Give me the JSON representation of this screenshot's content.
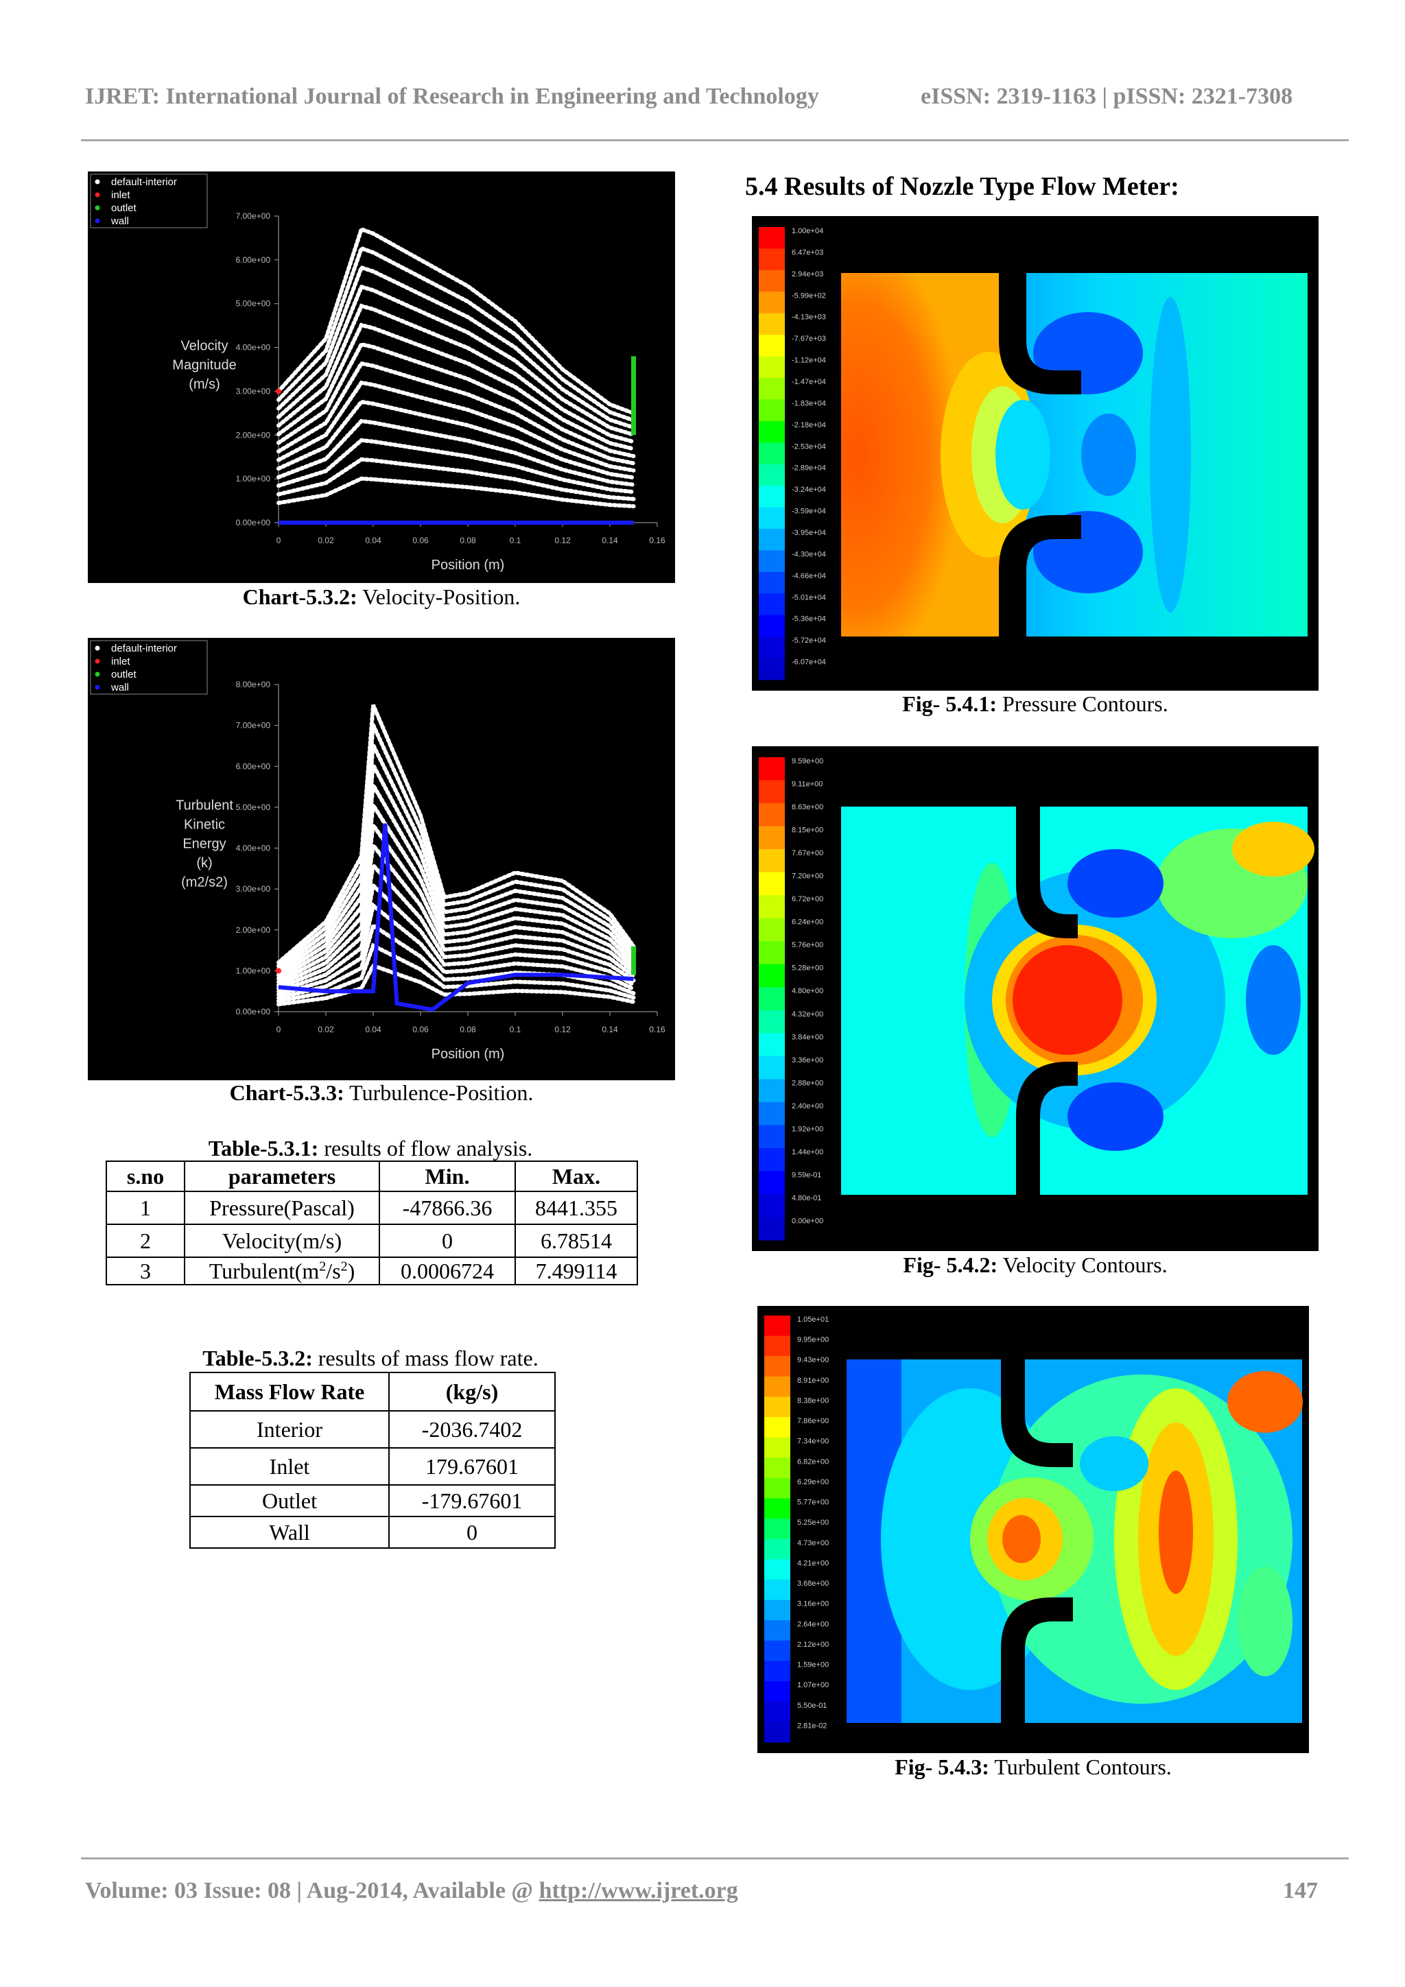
{
  "header": {
    "journal": "IJRET: International Journal of Research in Engineering and Technology",
    "issn": "eISSN: 2319-1163 | pISSN: 2321-7308"
  },
  "chart_532": {
    "caption_label": "Chart-5.3.2:",
    "caption_text": " Velocity-Position.",
    "legend": [
      "default-interior",
      "inlet",
      "outlet",
      "wall"
    ],
    "legend_colors": [
      "#ffffff",
      "#ff2020",
      "#20d020",
      "#1a1aff"
    ],
    "ylabel": [
      "Velocity",
      "Magnitude",
      "(m/s)"
    ],
    "yticks": [
      "7.00e+00",
      "6.00e+00",
      "5.00e+00",
      "4.00e+00",
      "3.00e+00",
      "2.00e+00",
      "1.00e+00",
      "0.00e+00"
    ],
    "xticks": [
      "0",
      "0.02",
      "0.04",
      "0.06",
      "0.08",
      "0.1",
      "0.12",
      "0.14",
      "0.16"
    ],
    "xlabel": "Position (m)"
  },
  "chart_533": {
    "caption_label": "Chart-5.3.3:",
    "caption_text": " Turbulence-Position.",
    "legend": [
      "default-interior",
      "inlet",
      "outlet",
      "wall"
    ],
    "legend_colors": [
      "#ffffff",
      "#ff2020",
      "#20d020",
      "#1a1aff"
    ],
    "ylabel": [
      "Turbulent",
      "Kinetic",
      "Energy",
      "(k)",
      "(m2/s2)"
    ],
    "yticks": [
      "8.00e+00",
      "7.00e+00",
      "6.00e+00",
      "5.00e+00",
      "4.00e+00",
      "3.00e+00",
      "2.00e+00",
      "1.00e+00",
      "0.00e+00"
    ],
    "xticks": [
      "0",
      "0.02",
      "0.04",
      "0.06",
      "0.08",
      "0.1",
      "0.12",
      "0.14",
      "0.16"
    ],
    "xlabel": "Position (m)"
  },
  "chart_data": [
    {
      "type": "scatter",
      "title": "",
      "xlabel": "Position (m)",
      "ylabel": "Velocity Magnitude (m/s)",
      "xlim": [
        0,
        0.16
      ],
      "ylim": [
        0,
        7
      ],
      "series": [
        {
          "name": "default-interior",
          "x": [
            0,
            0.02,
            0.035,
            0.04,
            0.05,
            0.06,
            0.08,
            0.1,
            0.12,
            0.14,
            0.15
          ],
          "values": [
            3.0,
            4.2,
            6.7,
            6.6,
            6.3,
            6.0,
            5.4,
            4.6,
            3.5,
            2.7,
            2.5
          ]
        },
        {
          "name": "inlet",
          "x": [
            0
          ],
          "values": [
            3.0
          ]
        },
        {
          "name": "outlet",
          "x": [
            0.15,
            0.15
          ],
          "values": [
            2.0,
            3.8
          ]
        },
        {
          "name": "wall",
          "x": [
            0,
            0.15
          ],
          "values": [
            0,
            0
          ]
        }
      ]
    },
    {
      "type": "scatter",
      "title": "",
      "xlabel": "Position (m)",
      "ylabel": "Turbulent Kinetic Energy (k) (m2/s2)",
      "xlim": [
        0,
        0.16
      ],
      "ylim": [
        0,
        8
      ],
      "series": [
        {
          "name": "default-interior",
          "x": [
            0,
            0.02,
            0.035,
            0.04,
            0.06,
            0.07,
            0.08,
            0.1,
            0.12,
            0.14,
            0.15
          ],
          "values": [
            1.2,
            2.2,
            3.8,
            7.5,
            4.8,
            2.8,
            2.9,
            3.4,
            3.2,
            2.4,
            1.6
          ]
        },
        {
          "name": "inlet",
          "x": [
            0
          ],
          "values": [
            1.0
          ]
        },
        {
          "name": "outlet",
          "x": [
            0.15,
            0.15
          ],
          "values": [
            0.9,
            1.6
          ]
        },
        {
          "name": "wall",
          "x": [
            0,
            0.02,
            0.04,
            0.045,
            0.05,
            0.065,
            0.08,
            0.1,
            0.12,
            0.15
          ],
          "values": [
            0.6,
            0.5,
            0.5,
            4.6,
            0.2,
            0.05,
            0.7,
            0.9,
            0.9,
            0.8
          ]
        }
      ]
    }
  ],
  "table_531": {
    "caption_label": "Table-5.3.1:",
    "caption_text": " results of flow analysis.",
    "headers": [
      "s.no",
      "parameters",
      "Min.",
      "Max."
    ],
    "rows": [
      {
        "sno": "1",
        "param": "Pressure(Pascal)",
        "min": "-47866.36",
        "max": "8441.355"
      },
      {
        "sno": "2",
        "param": "Velocity(m/s)",
        "min": "0",
        "max": "6.78514"
      },
      {
        "sno": "3",
        "param_pre": "Turbulent(m",
        "param_sup1": "2",
        "param_mid": "/s",
        "param_sup2": "2",
        "param_post": ")",
        "min": "0.0006724",
        "max": "7.499114"
      }
    ]
  },
  "table_532": {
    "caption_label": "Table-5.3.2:",
    "caption_text": " results of mass flow rate.",
    "headers": [
      "Mass Flow Rate",
      "(kg/s)"
    ],
    "rows": [
      {
        "name": "Interior",
        "value": "-2036.7402"
      },
      {
        "name": "Inlet",
        "value": "179.67601"
      },
      {
        "name": "Outlet",
        "value": "-179.67601"
      },
      {
        "name": "Wall",
        "value": "0"
      }
    ]
  },
  "section_heading": "5.4 Results of Nozzle Type Flow Meter:",
  "fig_541": {
    "caption_label": "Fig- 5.4.1:",
    "caption_text": " Pressure Contours.",
    "scale": [
      "1.00e+04",
      "6.47e+03",
      "2.94e+03",
      "-5.99e+02",
      "-4.13e+03",
      "-7.67e+03",
      "-1.12e+04",
      "-1.47e+04",
      "-1.83e+04",
      "-2.18e+04",
      "-2.53e+04",
      "-2.89e+04",
      "-3.24e+04",
      "-3.59e+04",
      "-3.95e+04",
      "-4.30e+04",
      "-4.66e+04",
      "-5.01e+04",
      "-5.36e+04",
      "-5.72e+04",
      "-6.07e+04"
    ]
  },
  "fig_542": {
    "caption_label": "Fig- 5.4.2:",
    "caption_text": " Velocity Contours.",
    "scale": [
      "9.59e+00",
      "9.11e+00",
      "8.63e+00",
      "8.15e+00",
      "7.67e+00",
      "7.20e+00",
      "6.72e+00",
      "6.24e+00",
      "5.76e+00",
      "5.28e+00",
      "4.80e+00",
      "4.32e+00",
      "3.84e+00",
      "3.36e+00",
      "2.88e+00",
      "2.40e+00",
      "1.92e+00",
      "1.44e+00",
      "9.59e-01",
      "4.80e-01",
      "0.00e+00"
    ]
  },
  "fig_543": {
    "caption_label": "Fig- 5.4.3:",
    "caption_text": " Turbulent Contours.",
    "scale": [
      "1.05e+01",
      "9.95e+00",
      "9.43e+00",
      "8.91e+00",
      "8.38e+00",
      "7.86e+00",
      "7.34e+00",
      "6.82e+00",
      "6.29e+00",
      "5.77e+00",
      "5.25e+00",
      "4.73e+00",
      "4.21e+00",
      "3.68e+00",
      "3.16e+00",
      "2.64e+00",
      "2.12e+00",
      "1.59e+00",
      "1.07e+00",
      "5.50e-01",
      "2.81e-02"
    ]
  },
  "footer": {
    "volume": "Volume: 03 Issue: 08 | Aug-2014, Available @ ",
    "url": "http://www.ijret.org",
    "page": "147"
  },
  "colors": {
    "rainbow": [
      "#ff0000",
      "#ff3300",
      "#ff6600",
      "#ff9900",
      "#ffcc00",
      "#ffff00",
      "#ccff00",
      "#99ff00",
      "#66ff00",
      "#00ff00",
      "#00ff66",
      "#00ffaa",
      "#00ffee",
      "#00ddff",
      "#00aaff",
      "#0077ff",
      "#0044ff",
      "#0022ff",
      "#0000ff",
      "#0000dd",
      "#0000cc"
    ]
  }
}
